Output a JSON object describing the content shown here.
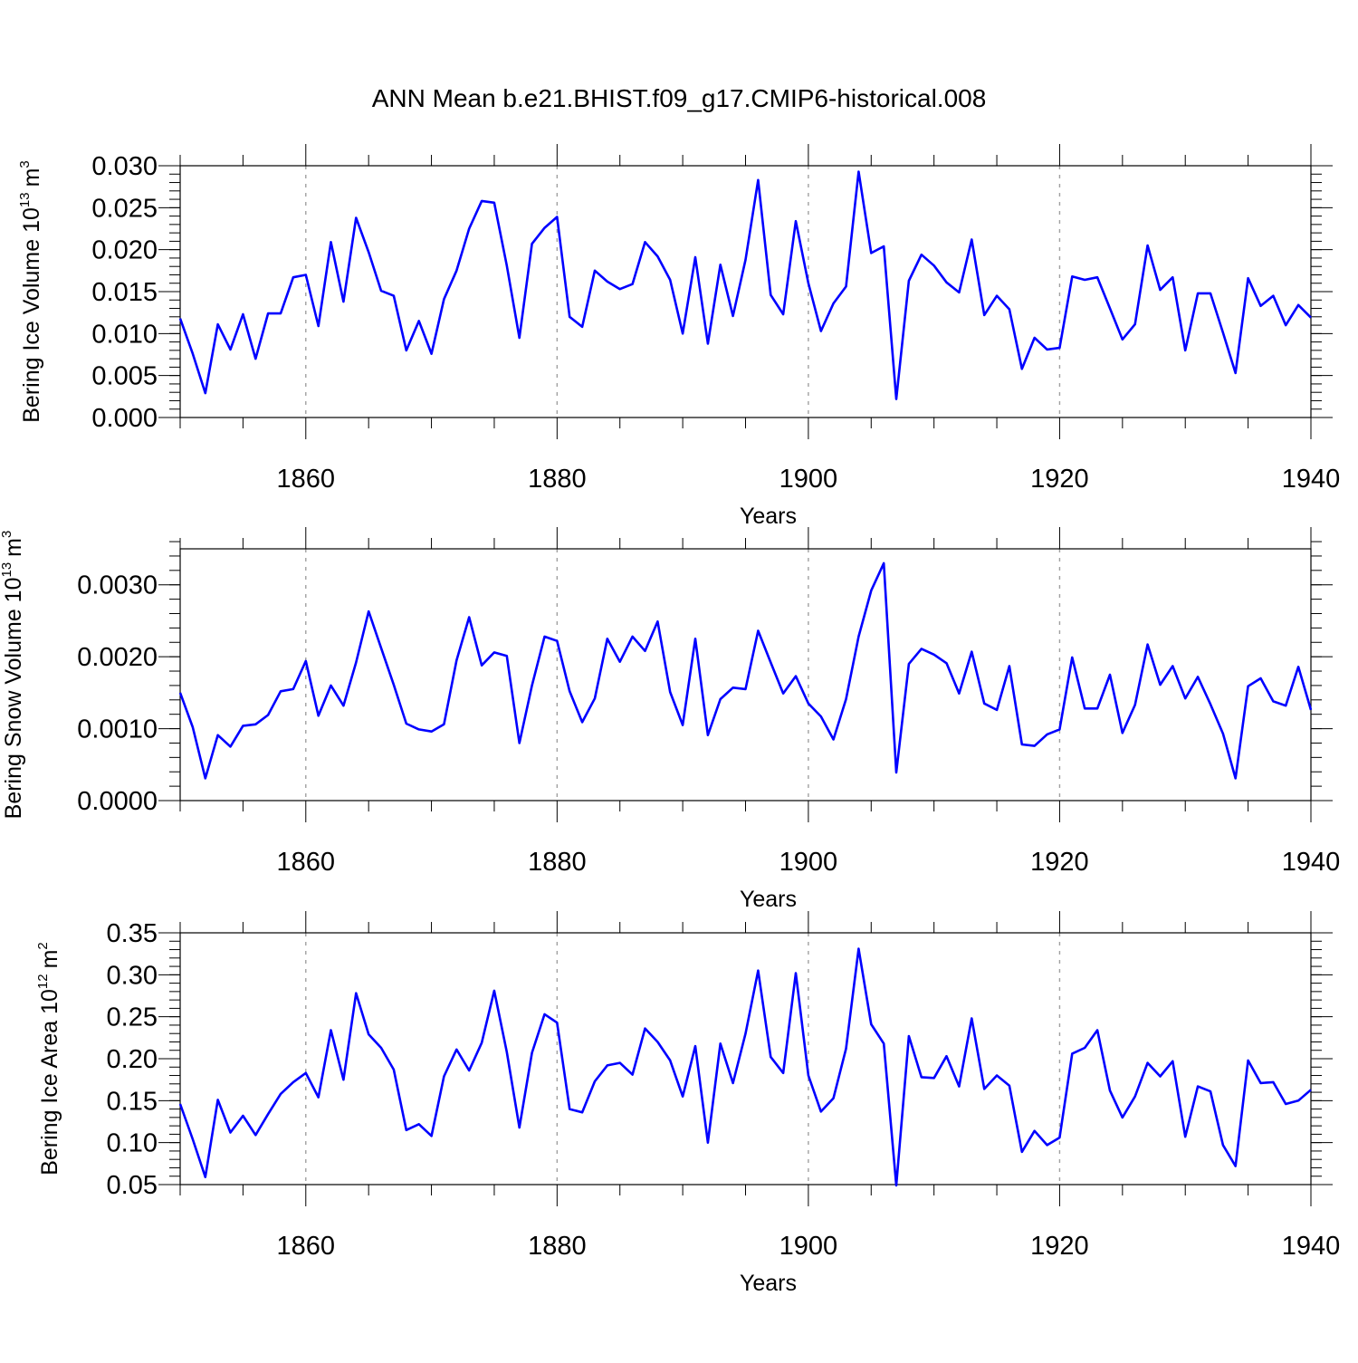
{
  "title": "ANN Mean b.e21.BHIST.f09_g17.CMIP6-historical.008",
  "chart_data": [
    {
      "type": "line",
      "name": "ice-volume",
      "ylabel_main": "Bering Ice Volume 10",
      "ylabel_exp": "13",
      "ylabel_unit": "m",
      "ylabel_unit_exp": "3",
      "xlabel": "Years",
      "xlim": [
        1850,
        1940
      ],
      "ylim": [
        0.0,
        0.03
      ],
      "x_major_ticks": [
        1860,
        1880,
        1900,
        1920,
        1940
      ],
      "x_major_labels": [
        "1860",
        "1880",
        "1900",
        "1920",
        "1940"
      ],
      "y_major_ticks": [
        0.0,
        0.005,
        0.01,
        0.015,
        0.02,
        0.025,
        0.03
      ],
      "y_major_labels": [
        "0.000",
        "0.005",
        "0.010",
        "0.015",
        "0.020",
        "0.025",
        "0.030"
      ],
      "y_minor_step": 0.001,
      "vgrid": [
        1860,
        1880,
        1900,
        1920
      ],
      "line_color": "#0000ff",
      "x_start": 1850,
      "values": [
        0.0118,
        0.0076,
        0.0029,
        0.0111,
        0.0081,
        0.0123,
        0.007,
        0.0124,
        0.0124,
        0.0167,
        0.017,
        0.0109,
        0.0209,
        0.0138,
        0.0238,
        0.0197,
        0.0151,
        0.0145,
        0.008,
        0.0115,
        0.0076,
        0.0141,
        0.0175,
        0.0225,
        0.0258,
        0.0256,
        0.0181,
        0.0095,
        0.0207,
        0.0226,
        0.0239,
        0.012,
        0.0108,
        0.0175,
        0.0162,
        0.0153,
        0.0159,
        0.0209,
        0.0192,
        0.0164,
        0.01,
        0.0191,
        0.0088,
        0.0182,
        0.0121,
        0.0188,
        0.0283,
        0.0146,
        0.0123,
        0.0234,
        0.016,
        0.0103,
        0.0136,
        0.0156,
        0.0293,
        0.0196,
        0.0204,
        0.0022,
        0.0163,
        0.0194,
        0.0181,
        0.0161,
        0.0149,
        0.0212,
        0.0122,
        0.0145,
        0.0129,
        0.0058,
        0.0095,
        0.0081,
        0.0083,
        0.0168,
        0.0164,
        0.0167,
        0.013,
        0.0093,
        0.0111,
        0.0205,
        0.0152,
        0.0167,
        0.008,
        0.0148,
        0.0148,
        0.0101,
        0.0053,
        0.0166,
        0.0133,
        0.0145,
        0.011,
        0.0134,
        0.0119
      ]
    },
    {
      "type": "line",
      "name": "snow-volume",
      "ylabel_main": "Bering Snow Volume 10",
      "ylabel_exp": "13",
      "ylabel_unit": "m",
      "ylabel_unit_exp": "3",
      "xlabel": "Years",
      "xlim": [
        1850,
        1940
      ],
      "ylim": [
        0.0,
        0.0035
      ],
      "x_major_ticks": [
        1860,
        1880,
        1900,
        1920,
        1940
      ],
      "x_major_labels": [
        "1860",
        "1880",
        "1900",
        "1920",
        "1940"
      ],
      "y_major_ticks": [
        0.0,
        0.001,
        0.002,
        0.003
      ],
      "y_major_labels": [
        "0.0000",
        "0.0010",
        "0.0020",
        "0.0030"
      ],
      "y_minor_step": 0.0002,
      "vgrid": [
        1860,
        1880,
        1900,
        1920
      ],
      "line_color": "#0000ff",
      "x_start": 1850,
      "values": [
        0.0015,
        0.00102,
        0.00031,
        0.00091,
        0.00075,
        0.00104,
        0.00106,
        0.00119,
        0.00152,
        0.00155,
        0.00194,
        0.00118,
        0.0016,
        0.00132,
        0.00192,
        0.00263,
        0.00212,
        0.00161,
        0.00107,
        0.00099,
        0.00096,
        0.00106,
        0.00195,
        0.00255,
        0.00188,
        0.00206,
        0.00201,
        0.0008,
        0.0016,
        0.00228,
        0.00222,
        0.00152,
        0.00109,
        0.00142,
        0.00225,
        0.00193,
        0.00228,
        0.00208,
        0.00249,
        0.00151,
        0.00105,
        0.00225,
        0.00091,
        0.00141,
        0.00157,
        0.00155,
        0.00236,
        0.00192,
        0.00149,
        0.00173,
        0.00135,
        0.00117,
        0.00085,
        0.00141,
        0.00228,
        0.00292,
        0.0033,
        0.00039,
        0.0019,
        0.00211,
        0.00203,
        0.00191,
        0.00149,
        0.00207,
        0.00135,
        0.00126,
        0.00187,
        0.00078,
        0.00076,
        0.00092,
        0.00099,
        0.00199,
        0.00128,
        0.00128,
        0.00175,
        0.00094,
        0.00133,
        0.00217,
        0.00161,
        0.00187,
        0.00142,
        0.00172,
        0.00134,
        0.00093,
        0.00031,
        0.00159,
        0.0017,
        0.00138,
        0.00132,
        0.00186,
        0.00126
      ]
    },
    {
      "type": "line",
      "name": "ice-area",
      "ylabel_main": "Bering Ice Area 10",
      "ylabel_exp": "12",
      "ylabel_unit": "m",
      "ylabel_unit_exp": "2",
      "xlabel": "Years",
      "xlim": [
        1850,
        1940
      ],
      "ylim": [
        0.05,
        0.35
      ],
      "x_major_ticks": [
        1860,
        1880,
        1900,
        1920,
        1940
      ],
      "x_major_labels": [
        "1860",
        "1880",
        "1900",
        "1920",
        "1940"
      ],
      "y_major_ticks": [
        0.05,
        0.1,
        0.15,
        0.2,
        0.25,
        0.3,
        0.35
      ],
      "y_major_labels": [
        "0.05",
        "0.10",
        "0.15",
        "0.20",
        "0.25",
        "0.30",
        "0.35"
      ],
      "y_minor_step": 0.01,
      "vgrid": [
        1860,
        1880,
        1900,
        1920
      ],
      "line_color": "#0000ff",
      "x_start": 1850,
      "values": [
        0.146,
        0.104,
        0.059,
        0.151,
        0.112,
        0.132,
        0.109,
        0.134,
        0.158,
        0.172,
        0.183,
        0.154,
        0.234,
        0.175,
        0.278,
        0.229,
        0.213,
        0.187,
        0.115,
        0.122,
        0.108,
        0.179,
        0.211,
        0.186,
        0.219,
        0.281,
        0.208,
        0.118,
        0.207,
        0.253,
        0.243,
        0.14,
        0.136,
        0.173,
        0.192,
        0.195,
        0.181,
        0.236,
        0.22,
        0.198,
        0.155,
        0.215,
        0.1,
        0.218,
        0.171,
        0.23,
        0.305,
        0.202,
        0.183,
        0.302,
        0.18,
        0.137,
        0.153,
        0.212,
        0.331,
        0.241,
        0.218,
        0.049,
        0.227,
        0.178,
        0.177,
        0.203,
        0.167,
        0.248,
        0.164,
        0.18,
        0.168,
        0.089,
        0.114,
        0.097,
        0.106,
        0.206,
        0.213,
        0.234,
        0.162,
        0.13,
        0.155,
        0.195,
        0.179,
        0.197,
        0.107,
        0.167,
        0.161,
        0.097,
        0.072,
        0.198,
        0.171,
        0.172,
        0.146,
        0.15,
        0.163
      ]
    }
  ]
}
